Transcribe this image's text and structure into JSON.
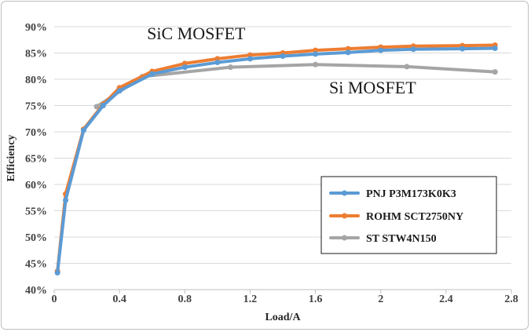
{
  "chart_data": {
    "type": "line",
    "title": "",
    "xlabel": "Load/A",
    "ylabel": "Efficiency",
    "xlim": [
      0,
      2.8
    ],
    "ylim": [
      40,
      90
    ],
    "x_ticks": [
      "0",
      "0.4",
      "0.8",
      "1.2",
      "1.6",
      "2",
      "2.4",
      "2.8"
    ],
    "y_ticks": [
      "40%",
      "45%",
      "50%",
      "55%",
      "60%",
      "65%",
      "70%",
      "75%",
      "80%",
      "85%",
      "90%"
    ],
    "grid": "horizontal",
    "legend_position": "bottom-right",
    "annotations": [
      {
        "text": "SiC  MOSFET",
        "x": 0.87,
        "y": 87.6
      },
      {
        "text": "Si  MOSFET",
        "x": 1.95,
        "y": 77.3
      }
    ],
    "series": [
      {
        "name": "PNJ P3M173K0K3",
        "color": "#5b9bd5",
        "x": [
          0.02,
          0.07,
          0.18,
          0.3,
          0.4,
          0.6,
          0.8,
          1.0,
          1.2,
          1.4,
          1.6,
          1.8,
          2.0,
          2.2,
          2.5,
          2.7
        ],
        "y": [
          43.2,
          57.0,
          70.3,
          75.0,
          77.8,
          81.0,
          82.3,
          83.2,
          83.9,
          84.4,
          84.8,
          85.1,
          85.5,
          85.7,
          85.8,
          85.9
        ]
      },
      {
        "name": "ROHM SCT2750NY",
        "color": "#ed7d31",
        "x": [
          0.02,
          0.07,
          0.18,
          0.3,
          0.4,
          0.6,
          0.8,
          1.0,
          1.2,
          1.4,
          1.6,
          1.8,
          2.0,
          2.2,
          2.5,
          2.7
        ],
        "y": [
          43.5,
          58.2,
          70.5,
          75.2,
          78.4,
          81.5,
          83.0,
          83.9,
          84.6,
          85.0,
          85.5,
          85.8,
          86.1,
          86.3,
          86.4,
          86.5
        ]
      },
      {
        "name": "ST STW4N150",
        "color": "#a5a5a5",
        "x": [
          0.26,
          0.54,
          1.08,
          1.6,
          2.16,
          2.7
        ],
        "y": [
          74.8,
          80.5,
          82.3,
          82.8,
          82.4,
          81.4
        ]
      }
    ]
  }
}
